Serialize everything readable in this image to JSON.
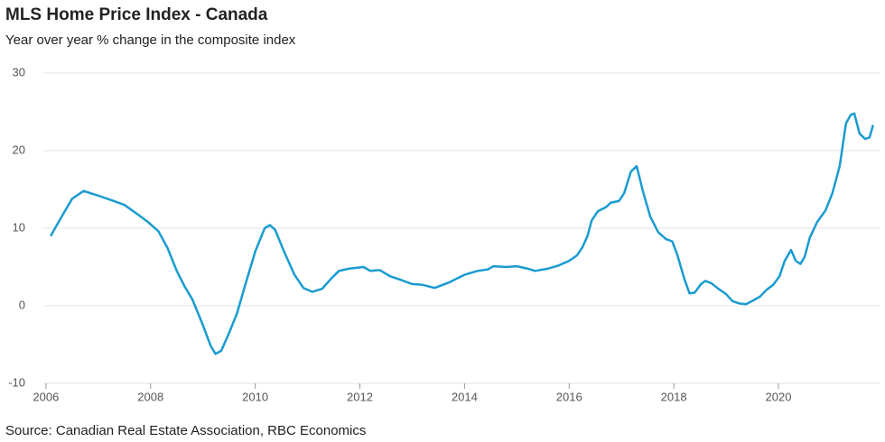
{
  "chart_data": {
    "type": "line",
    "title": "MLS Home Price Index - Canada",
    "subtitle": "Year over year % change in the composite index",
    "source": "Source: Canadian Real Estate Association, RBC Economics",
    "color": "#1a9bd0",
    "x": [
      2006.09,
      2006.3,
      2006.5,
      2006.72,
      2007.0,
      2007.3,
      2007.5,
      2007.75,
      2007.95,
      2008.15,
      2008.32,
      2008.5,
      2008.65,
      2008.8,
      2009.0,
      2009.15,
      2009.24,
      2009.35,
      2009.5,
      2009.65,
      2009.8,
      2010.0,
      2010.18,
      2010.28,
      2010.38,
      2010.55,
      2010.75,
      2010.92,
      2011.09,
      2011.28,
      2011.45,
      2011.6,
      2011.8,
      2012.07,
      2012.2,
      2012.38,
      2012.58,
      2012.8,
      2013.0,
      2013.2,
      2013.43,
      2013.7,
      2014.0,
      2014.25,
      2014.45,
      2014.55,
      2014.8,
      2015.0,
      2015.2,
      2015.35,
      2015.6,
      2015.8,
      2016.0,
      2016.15,
      2016.25,
      2016.35,
      2016.43,
      2016.55,
      2016.7,
      2016.8,
      2016.95,
      2017.05,
      2017.18,
      2017.29,
      2017.42,
      2017.55,
      2017.7,
      2017.85,
      2017.97,
      2018.07,
      2018.2,
      2018.3,
      2018.4,
      2018.52,
      2018.6,
      2018.72,
      2018.85,
      2019.0,
      2019.12,
      2019.25,
      2019.38,
      2019.52,
      2019.65,
      2019.78,
      2019.9,
      2020.02,
      2020.12,
      2020.24,
      2020.33,
      2020.42,
      2020.5,
      2020.6,
      2020.74,
      2020.9,
      2021.03,
      2021.17,
      2021.29,
      2021.38,
      2021.45,
      2021.55,
      2021.66,
      2021.74,
      2021.81
    ],
    "values": [
      9.0,
      11.5,
      13.8,
      14.8,
      14.2,
      13.5,
      13.0,
      11.8,
      10.8,
      9.6,
      7.5,
      4.5,
      2.5,
      0.8,
      -2.5,
      -5.2,
      -6.2,
      -5.8,
      -3.5,
      -1.0,
      2.5,
      7.0,
      10.0,
      10.4,
      9.8,
      7.0,
      4.0,
      2.3,
      1.8,
      2.2,
      3.5,
      4.5,
      4.8,
      5.0,
      4.5,
      4.6,
      3.8,
      3.3,
      2.8,
      2.7,
      2.3,
      3.0,
      4.0,
      4.5,
      4.7,
      5.1,
      5.0,
      5.1,
      4.8,
      4.5,
      4.8,
      5.2,
      5.8,
      6.5,
      7.5,
      9.0,
      11.0,
      12.2,
      12.7,
      13.3,
      13.5,
      14.5,
      17.3,
      18.0,
      14.5,
      11.5,
      9.5,
      8.6,
      8.3,
      6.5,
      3.5,
      1.6,
      1.7,
      2.8,
      3.2,
      2.9,
      2.2,
      1.5,
      0.6,
      0.3,
      0.2,
      0.7,
      1.2,
      2.1,
      2.7,
      3.8,
      5.8,
      7.2,
      5.8,
      5.4,
      6.3,
      8.8,
      10.8,
      12.3,
      14.5,
      18.0,
      23.5,
      24.6,
      24.8,
      22.2,
      21.5,
      21.7,
      23.3
    ],
    "xlim": [
      2005.95,
      2021.95
    ],
    "xticks": [
      2006,
      2008,
      2010,
      2012,
      2014,
      2016,
      2018,
      2020
    ],
    "ylim": [
      -10,
      30
    ],
    "yticks": [
      -10,
      0,
      10,
      20,
      30
    ],
    "grid": true
  }
}
